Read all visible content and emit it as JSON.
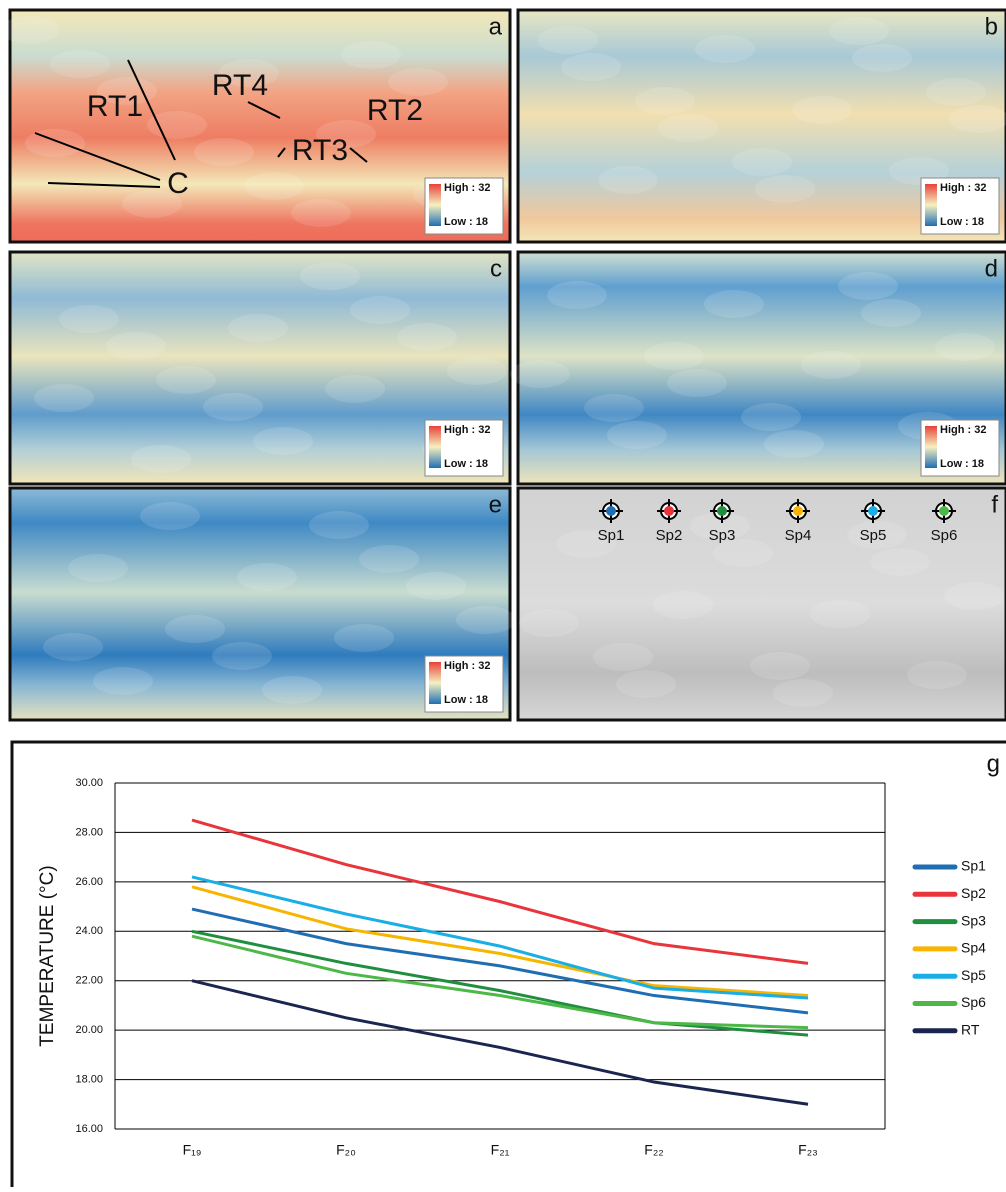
{
  "panels": [
    {
      "letter": "a",
      "high": "High : 32",
      "low": "Low : 18",
      "labels": [
        "RT1",
        "RT4",
        "RT2",
        "RT3",
        "C"
      ]
    },
    {
      "letter": "b",
      "high": "High : 32",
      "low": "Low : 18"
    },
    {
      "letter": "c",
      "high": "High : 32",
      "low": "Low : 18"
    },
    {
      "letter": "d",
      "high": "High : 32",
      "low": "Low : 18"
    },
    {
      "letter": "e",
      "high": "High : 32",
      "low": "Low : 18"
    },
    {
      "letter": "f",
      "spots": [
        {
          "label": "Sp1",
          "color": "#1f6db3"
        },
        {
          "label": "Sp2",
          "color": "#e8343a"
        },
        {
          "label": "Sp3",
          "color": "#1f8f3f"
        },
        {
          "label": "Sp4",
          "color": "#f7b500"
        },
        {
          "label": "Sp5",
          "color": "#19aee6"
        },
        {
          "label": "Sp6",
          "color": "#4db848"
        }
      ]
    }
  ],
  "chart_data": {
    "type": "line",
    "panel_label": "g",
    "y_label": "TEMPERATURE  (°C)",
    "categories": [
      "F₁₉",
      "F₂₀",
      "F₂₁",
      "F₂₂",
      "F₂₃"
    ],
    "ylim": [
      16,
      30
    ],
    "yticks": [
      {
        "value": 16,
        "label": "16.00"
      },
      {
        "value": 18,
        "label": "18.00"
      },
      {
        "value": 20,
        "label": "20.00"
      },
      {
        "value": 22,
        "label": "22.00"
      },
      {
        "value": 24,
        "label": "24.00"
      },
      {
        "value": 26,
        "label": "26.00"
      },
      {
        "value": 28,
        "label": "28.00"
      },
      {
        "value": 30,
        "label": "30.00"
      }
    ],
    "grid": true,
    "series": [
      {
        "name": "Sp1",
        "color": "#1f6db3",
        "values": [
          24.9,
          23.5,
          22.6,
          21.4,
          20.7
        ]
      },
      {
        "name": "Sp2",
        "color": "#e8343a",
        "values": [
          28.5,
          26.7,
          25.2,
          23.5,
          22.7
        ]
      },
      {
        "name": "Sp3",
        "color": "#1f8f3f",
        "values": [
          24.0,
          22.7,
          21.6,
          20.3,
          19.8
        ]
      },
      {
        "name": "Sp4",
        "color": "#f7b500",
        "values": [
          25.8,
          24.1,
          23.1,
          21.8,
          21.4
        ]
      },
      {
        "name": "Sp5",
        "color": "#19aee6",
        "values": [
          26.2,
          24.7,
          23.4,
          21.7,
          21.3
        ]
      },
      {
        "name": "Sp6",
        "color": "#4db848",
        "values": [
          23.8,
          22.3,
          21.4,
          20.3,
          20.1
        ]
      },
      {
        "name": "RT",
        "color": "#1a2550",
        "values": [
          22.0,
          20.5,
          19.3,
          17.9,
          17.0
        ]
      }
    ]
  }
}
